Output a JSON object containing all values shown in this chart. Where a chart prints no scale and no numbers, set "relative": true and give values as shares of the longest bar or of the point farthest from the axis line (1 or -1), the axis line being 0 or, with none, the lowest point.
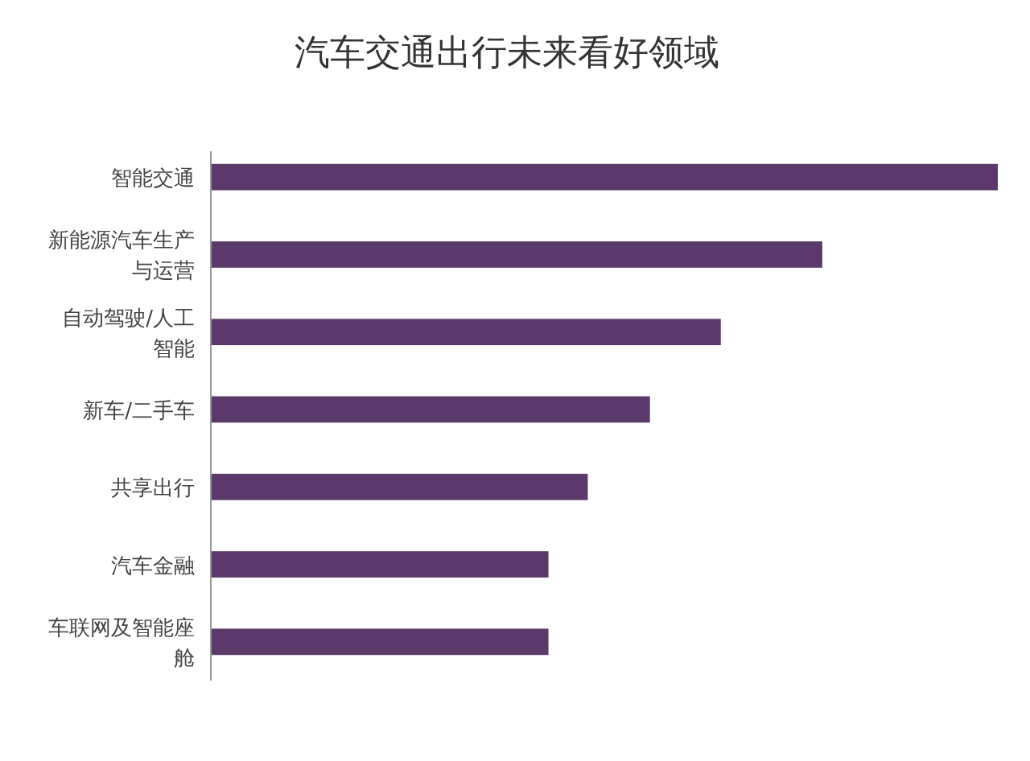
{
  "chart_data": {
    "type": "bar",
    "orientation": "horizontal",
    "relative": true,
    "title": "汽车交通出行未来看好领域",
    "categories": [
      "智能交通",
      "新能源汽车生产与运营",
      "自动驾驶/人工智能",
      "新车/二手车",
      "共享出行",
      "汽车金融",
      "车联网及智能座舱"
    ],
    "values": [
      1,
      0.777,
      0.648,
      0.558,
      0.479,
      0.429,
      0.429
    ],
    "color": "#5b3a6b"
  }
}
